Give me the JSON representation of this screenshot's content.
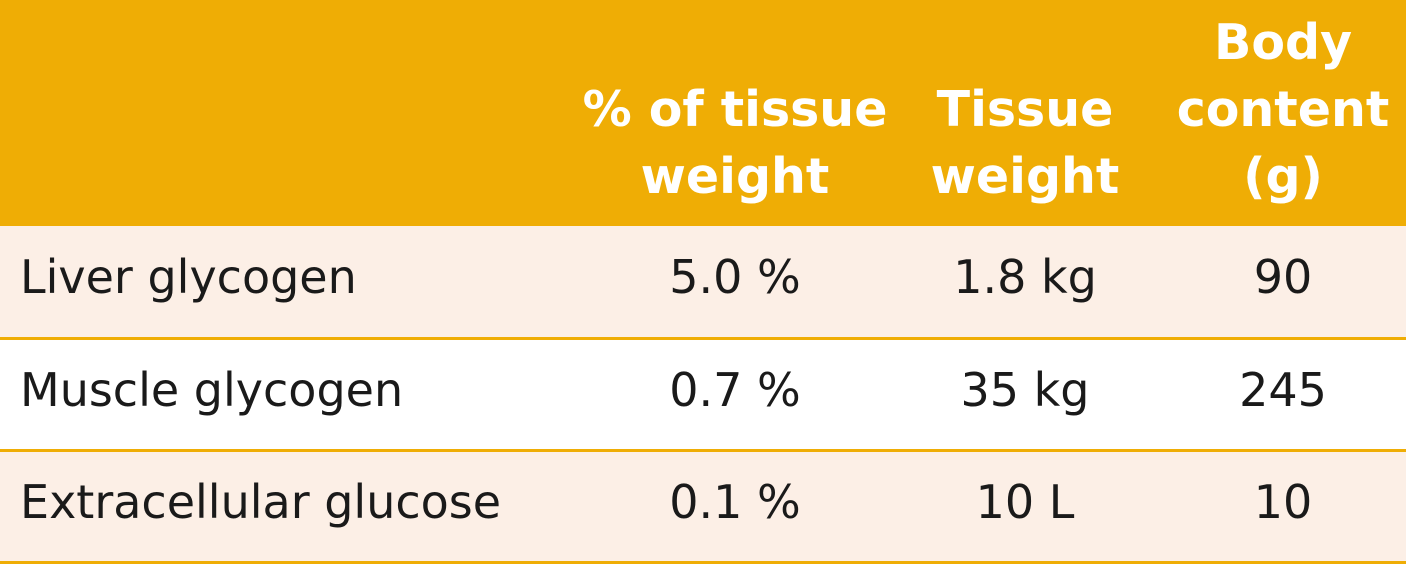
{
  "table": {
    "header_color": "#efad05",
    "shaded_row_color": "#fcefe6",
    "headers": [
      "",
      "% of tissue\nweight",
      "Tissue\nweight",
      "Body\ncontent\n(g)"
    ],
    "rows": [
      {
        "label": "Liver glycogen",
        "percent": "5.0 %",
        "tissue_weight": "1.8 kg",
        "body_content": "90"
      },
      {
        "label": "Muscle glycogen",
        "percent": "0.7 %",
        "tissue_weight": "35 kg",
        "body_content": "245"
      },
      {
        "label": "Extracellular glucose",
        "percent": "0.1 %",
        "tissue_weight": "10 L",
        "body_content": "10"
      }
    ]
  }
}
